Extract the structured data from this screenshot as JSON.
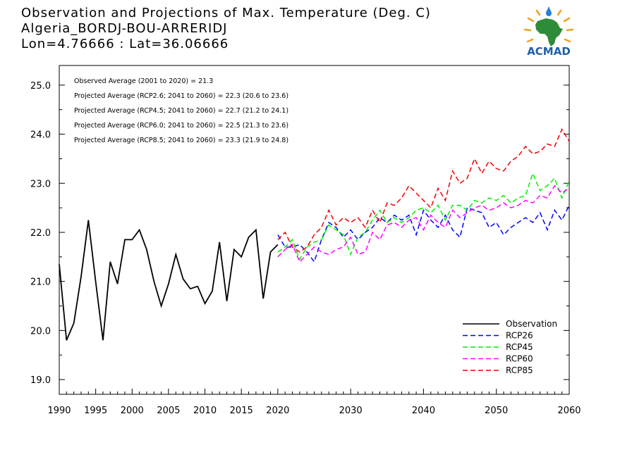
{
  "header": {
    "line1": "Observation and Projections of Max. Temperature (Deg. C)",
    "line2": "Algeria_BORDJ-BOU-ARRERIDJ",
    "line3": "Lon=4.76666 : Lat=36.06666"
  },
  "logo": {
    "text": "ACMAD",
    "colors": {
      "text": "#1f5fa8",
      "africa": "#2e8b3a",
      "rays": "#f0a020",
      "drop": "#2a7fd0"
    }
  },
  "chart_data": {
    "type": "line",
    "title": "Observation and Projections of Max. Temperature (Deg. C)",
    "xlabel": "",
    "ylabel": "",
    "xlim": [
      1990,
      2060
    ],
    "ylim": [
      18.7,
      25.4
    ],
    "grid": false,
    "x_ticks": [
      1990,
      1995,
      2000,
      2005,
      2010,
      2015,
      2020,
      2030,
      2040,
      2050,
      2060
    ],
    "y_ticks": [
      19.0,
      20.0,
      21.0,
      22.0,
      23.0,
      24.0,
      25.0
    ],
    "y_tick_labels": [
      "19.0",
      "20.0",
      "21.0",
      "22.0",
      "23.0",
      "24.0",
      "25.0"
    ],
    "annotations": [
      "Observed Average (2001 to 2020) = 21.3",
      "Projected Average (RCP2.6; 2041 to 2060) = 22.3 (20.6 to 23.6)",
      "Projected Average (RCP4.5; 2041 to 2060) = 22.7 (21.2 to 24.1)",
      "Projected Average (RCP6.0; 2041 to 2060) = 22.5 (21.3 to 23.6)",
      "Projected Average (RCP8.5; 2041 to 2060) = 23.3 (21.9 to 24.8)"
    ],
    "legend_position": "bottom-right",
    "series": [
      {
        "name": "Observation",
        "color": "#000000",
        "dash": "solid",
        "x": [
          1990,
          1991,
          1992,
          1993,
          1994,
          1995,
          1996,
          1997,
          1998,
          1999,
          2000,
          2001,
          2002,
          2003,
          2004,
          2005,
          2006,
          2007,
          2008,
          2009,
          2010,
          2011,
          2012,
          2013,
          2014,
          2015,
          2016,
          2017,
          2018,
          2019,
          2020
        ],
        "values": [
          21.35,
          19.8,
          20.15,
          21.1,
          22.25,
          21.0,
          19.8,
          21.4,
          20.95,
          21.85,
          21.85,
          22.05,
          21.65,
          21.0,
          20.5,
          20.95,
          21.55,
          21.05,
          20.85,
          20.9,
          20.55,
          20.8,
          21.8,
          20.6,
          21.65,
          21.5,
          21.9,
          22.05,
          20.65,
          21.6,
          21.75
        ]
      },
      {
        "name": "RCP26",
        "color": "#0000ff",
        "dash": "dashed",
        "x": [
          2020,
          2021,
          2022,
          2023,
          2024,
          2025,
          2026,
          2027,
          2028,
          2029,
          2030,
          2031,
          2032,
          2033,
          2034,
          2035,
          2036,
          2037,
          2038,
          2039,
          2040,
          2041,
          2042,
          2043,
          2044,
          2045,
          2046,
          2047,
          2048,
          2049,
          2050,
          2051,
          2052,
          2053,
          2054,
          2055,
          2056,
          2057,
          2058,
          2059,
          2060
        ],
        "values": [
          21.95,
          21.7,
          21.7,
          21.75,
          21.6,
          21.4,
          21.85,
          22.2,
          22.1,
          21.9,
          22.05,
          21.85,
          22.0,
          22.1,
          22.3,
          22.2,
          22.35,
          22.25,
          22.35,
          21.95,
          22.45,
          22.25,
          22.1,
          22.35,
          22.05,
          21.9,
          22.5,
          22.45,
          22.4,
          22.1,
          22.2,
          21.95,
          22.1,
          22.2,
          22.3,
          22.2,
          22.4,
          22.05,
          22.45,
          22.25,
          22.55
        ]
      },
      {
        "name": "RCP45",
        "color": "#00ee00",
        "dash": "dashed",
        "x": [
          2020,
          2021,
          2022,
          2023,
          2024,
          2025,
          2026,
          2027,
          2028,
          2029,
          2030,
          2031,
          2032,
          2033,
          2034,
          2035,
          2036,
          2037,
          2038,
          2039,
          2040,
          2041,
          2042,
          2043,
          2044,
          2045,
          2046,
          2047,
          2048,
          2049,
          2050,
          2051,
          2052,
          2053,
          2054,
          2055,
          2056,
          2057,
          2058,
          2059,
          2060
        ],
        "values": [
          21.6,
          21.7,
          21.85,
          21.45,
          21.7,
          21.8,
          21.85,
          22.15,
          22.05,
          21.95,
          21.55,
          21.9,
          22.0,
          22.25,
          22.45,
          22.2,
          22.3,
          22.2,
          22.3,
          22.45,
          22.5,
          22.4,
          22.55,
          22.25,
          22.55,
          22.55,
          22.45,
          22.65,
          22.6,
          22.7,
          22.65,
          22.75,
          22.6,
          22.7,
          22.75,
          23.2,
          22.85,
          22.95,
          23.1,
          22.7,
          23.05
        ]
      },
      {
        "name": "RCP60",
        "color": "#ff00ff",
        "dash": "dashed",
        "x": [
          2020,
          2021,
          2022,
          2023,
          2024,
          2025,
          2026,
          2027,
          2028,
          2029,
          2030,
          2031,
          2032,
          2033,
          2034,
          2035,
          2036,
          2037,
          2038,
          2039,
          2040,
          2041,
          2042,
          2043,
          2044,
          2045,
          2046,
          2047,
          2048,
          2049,
          2050,
          2051,
          2052,
          2053,
          2054,
          2055,
          2056,
          2057,
          2058,
          2059,
          2060
        ],
        "values": [
          21.5,
          21.65,
          21.75,
          21.4,
          21.55,
          21.7,
          21.6,
          21.55,
          21.65,
          21.7,
          21.9,
          21.55,
          21.6,
          22.0,
          21.85,
          22.15,
          22.2,
          22.1,
          22.25,
          22.3,
          22.05,
          22.35,
          22.2,
          22.1,
          22.45,
          22.3,
          22.4,
          22.5,
          22.55,
          22.45,
          22.5,
          22.6,
          22.5,
          22.55,
          22.65,
          22.6,
          22.75,
          22.7,
          22.95,
          22.8,
          22.9
        ]
      },
      {
        "name": "RCP85",
        "color": "#ee0000",
        "dash": "dashed",
        "x": [
          2020,
          2021,
          2022,
          2023,
          2024,
          2025,
          2026,
          2027,
          2028,
          2029,
          2030,
          2031,
          2032,
          2033,
          2034,
          2035,
          2036,
          2037,
          2038,
          2039,
          2040,
          2041,
          2042,
          2043,
          2044,
          2045,
          2046,
          2047,
          2048,
          2049,
          2050,
          2051,
          2052,
          2053,
          2054,
          2055,
          2056,
          2057,
          2058,
          2059,
          2060
        ],
        "values": [
          21.85,
          22.0,
          21.7,
          21.6,
          21.7,
          21.95,
          22.1,
          22.45,
          22.15,
          22.3,
          22.2,
          22.3,
          22.1,
          22.45,
          22.2,
          22.6,
          22.55,
          22.7,
          22.95,
          22.8,
          22.65,
          22.5,
          22.9,
          22.65,
          23.25,
          23.0,
          23.1,
          23.5,
          23.2,
          23.45,
          23.3,
          23.25,
          23.45,
          23.55,
          23.75,
          23.6,
          23.65,
          23.8,
          23.75,
          24.1,
          23.85
        ]
      }
    ]
  }
}
